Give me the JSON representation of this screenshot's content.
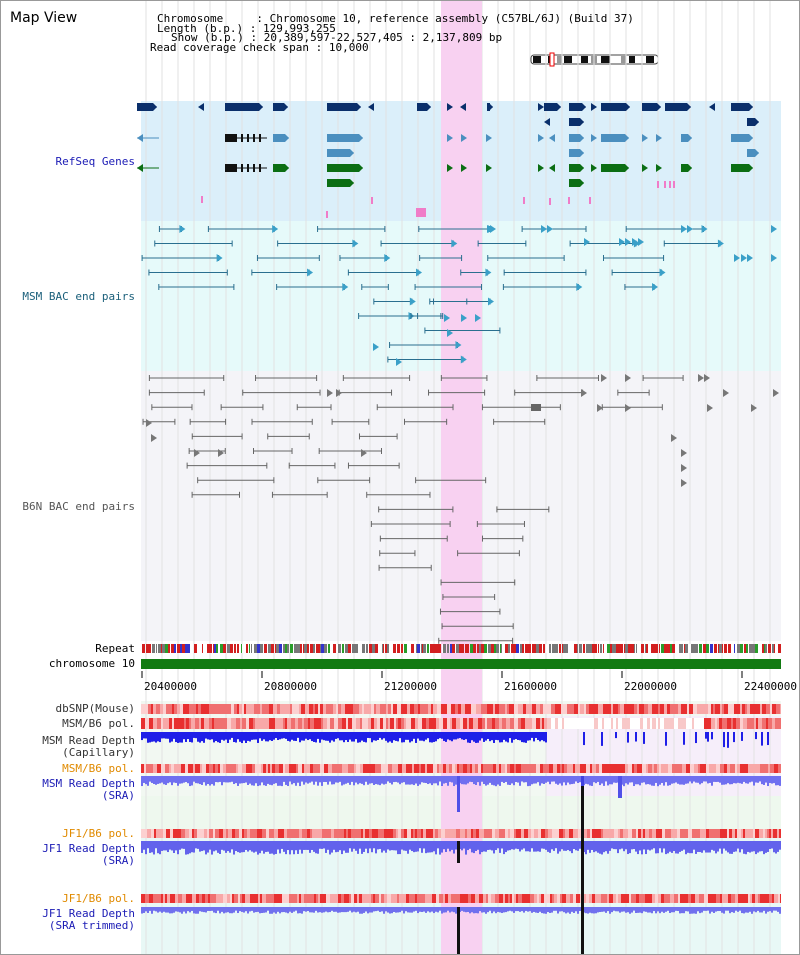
{
  "title": "Map View",
  "info": {
    "chromosome_label": "Chromosome",
    "chromosome_value": "Chromosome 10, reference assembly (C57BL/6J) (Build 37)",
    "length_label": "Length (b.p.)",
    "length_value": "129,993,255",
    "show_label": "Show (b.p.)",
    "show_value": "20,389,597-22,527,405 : 2,137,809 bp",
    "span_label": "Read coverage check span",
    "span_value": "10,000"
  },
  "tracks": {
    "refseq": "RefSeq Genes",
    "msm_bac": "MSM BAC end pairs",
    "b6n_bac": "B6N BAC end pairs",
    "repeat": "Repeat",
    "chromosome": "chromosome 10",
    "dbsnp": "dbSNP(Mouse)",
    "msm_b6_pol": "MSM/B6 pol.",
    "msm_read_depth_cap_1": "MSM Read Depth",
    "msm_read_depth_cap_2": "(Capillary)",
    "msm_b6_pol_2": "MSM/B6 pol.",
    "msm_read_depth_sra_1": "MSM Read Depth",
    "msm_read_depth_sra_2": "(SRA)",
    "jf1_b6_pol": "JF1/B6 pol.",
    "jf1_read_depth_sra_1": "JF1 Read Depth",
    "jf1_read_depth_sra_2": "(SRA)",
    "jf1_b6_pol_2": "JF1/B6 pol.",
    "jf1_read_depth_trim_1": "JF1 Read Depth",
    "jf1_read_depth_trim_2": "(SRA trimmed)"
  },
  "axis_ticks": [
    "20400000",
    "20800000",
    "21200000",
    "21600000",
    "22000000",
    "22400000"
  ],
  "colors": {
    "refseq_bg": "#dbeffa",
    "msm_bg": "#e6fafa",
    "b6n_bg": "#f4f4f8",
    "highlight": "#f8d6f2",
    "navy": "#0a2f6b",
    "steel": "#4b8fbf",
    "green": "#0b6e13",
    "teal": "#2a6f8f",
    "gray": "#666666",
    "depth_blue": "#2222ee",
    "depth_light": "#7777ee",
    "orange_label": "#e08a00"
  }
}
